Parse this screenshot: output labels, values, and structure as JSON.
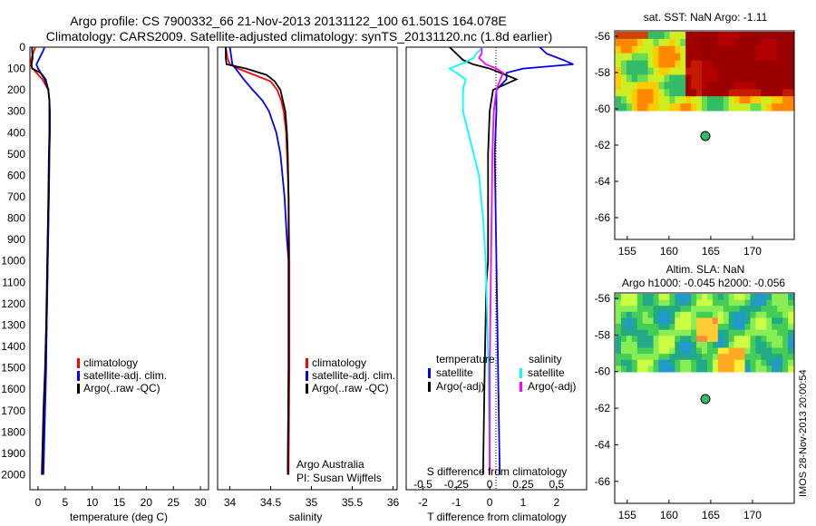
{
  "header": {
    "line1": "Argo profile: CS 7900332_66 21-Nov-2013 20131122_100 61.501S 164.078E",
    "line2": "Climatology: CARS2009. Satellite-adjusted climatology: synTS_20131120.nc (1.8d earlier)"
  },
  "side_label": "IMOS 28-Nov-2013 20:00:54",
  "colors": {
    "climatology": "#ff0000",
    "satellite": "#0000ff",
    "argo": "#000000",
    "salinity_satellite": "#00ffff",
    "salinity_argo": "#ff00ff"
  },
  "depth_axis": {
    "ticks": [
      "0",
      "100",
      "200",
      "300",
      "400",
      "500",
      "600",
      "700",
      "800",
      "900",
      "1000",
      "1100",
      "1200",
      "1300",
      "1400",
      "1500",
      "1600",
      "1700",
      "1800",
      "1900",
      "2000"
    ]
  },
  "panels": {
    "temperature": {
      "xlabel": "temperature (deg C)",
      "xticks": [
        "0",
        "5",
        "10",
        "15",
        "20",
        "25",
        "30"
      ],
      "legend": [
        "climatology",
        "satellite-adj. clim.",
        "Argo(..raw -QC)"
      ]
    },
    "salinity": {
      "xlabel": "salinity",
      "xticks": [
        "34",
        "34.5",
        "35",
        "35.5",
        "36"
      ],
      "legend": [
        "climatology",
        "satellite-adj. clim.",
        "Argo(..raw -QC)"
      ],
      "note1": "Argo Australia",
      "note2": "PI: Susan Wijffels"
    },
    "difference": {
      "xlabel": "T difference from climatology",
      "xticks": [
        "-2",
        "-1",
        "0",
        "1",
        "2"
      ],
      "top_label": "S difference from climatology",
      "top_ticks": [
        "-0.5",
        "-0.25",
        "0",
        "0.25",
        "0.5"
      ],
      "legend_t_title": "temperature",
      "legend_s_title": "salinity",
      "legend_t": [
        "satellite",
        "Argo(-adj)"
      ],
      "legend_s": [
        "satellite",
        "Argo(-adj)"
      ]
    }
  },
  "maps": {
    "sst": {
      "title": "sat. SST: NaN Argo: -1.11",
      "yticks": [
        "-56",
        "-58",
        "-60",
        "-62",
        "-64",
        "-66"
      ],
      "xticks": [
        "155",
        "160",
        "165",
        "170"
      ]
    },
    "sla": {
      "title1": "Altim. SLA: NaN",
      "title2": "Argo h1000: -0.045 h2000: -0.056",
      "yticks": [
        "-56",
        "-58",
        "-60",
        "-62",
        "-64",
        "-66"
      ],
      "xticks": [
        "155",
        "160",
        "165",
        "170"
      ]
    }
  },
  "chart_data": [
    {
      "type": "line",
      "title": "",
      "xlabel": "temperature (deg C)",
      "ylabel": "",
      "xlim": [
        -1.5,
        31.5
      ],
      "ylim": [
        2070,
        0
      ],
      "series": [
        {
          "name": "climatology",
          "depth": [
            0,
            20,
            50,
            80,
            100,
            150,
            200,
            250,
            300,
            400,
            500,
            700,
            1000,
            1300,
            1500,
            1700,
            2000
          ],
          "values": [
            -0.5,
            -0.8,
            -1.2,
            -1.4,
            -1.0,
            0.8,
            1.9,
            2.1,
            2.1,
            2.1,
            2.1,
            2.0,
            1.8,
            1.6,
            1.4,
            1.2,
            0.9
          ]
        },
        {
          "name": "satellite-adj. clim.",
          "depth": [
            0,
            20,
            50,
            80,
            100,
            150,
            200,
            250,
            300,
            400,
            500,
            700,
            1000,
            1300,
            1500,
            1700,
            2000
          ],
          "values": [
            1.2,
            0.9,
            0.3,
            -0.3,
            0.0,
            1.2,
            1.9,
            2.1,
            2.2,
            2.2,
            2.1,
            2.0,
            1.8,
            1.6,
            1.5,
            1.3,
            1.0
          ]
        },
        {
          "name": "Argo(..raw -QC)",
          "depth": [
            0,
            20,
            50,
            80,
            100,
            120,
            150,
            200,
            250,
            300,
            400,
            500,
            700,
            1000,
            1300,
            1500,
            1700,
            2000
          ],
          "values": [
            -1.1,
            -1.1,
            -1.0,
            -1.2,
            -1.1,
            0.5,
            1.4,
            1.9,
            2.1,
            2.1,
            2.1,
            2.0,
            1.9,
            1.7,
            1.5,
            1.3,
            1.0,
            0.7
          ]
        }
      ]
    },
    {
      "type": "line",
      "title": "",
      "xlabel": "salinity",
      "ylabel": "",
      "xlim": [
        33.85,
        36.05
      ],
      "ylim": [
        2070,
        0
      ],
      "series": [
        {
          "name": "climatology",
          "depth": [
            0,
            50,
            80,
            100,
            130,
            160,
            200,
            250,
            300,
            400,
            500,
            700,
            1000,
            1500,
            2000
          ],
          "values": [
            33.95,
            33.97,
            34.0,
            34.1,
            34.3,
            34.5,
            34.58,
            34.63,
            34.66,
            34.69,
            34.7,
            34.72,
            34.73,
            34.73,
            34.72
          ]
        },
        {
          "name": "satellite-adj. clim.",
          "depth": [
            0,
            50,
            80,
            100,
            150,
            200,
            250,
            300,
            400,
            500,
            700,
            900,
            1000,
            1500,
            2000
          ],
          "values": [
            34.0,
            34.02,
            34.03,
            34.07,
            34.17,
            34.28,
            34.4,
            34.48,
            34.57,
            34.62,
            34.67,
            34.7,
            34.72,
            34.72,
            34.71
          ]
        },
        {
          "name": "Argo(..raw -QC)",
          "depth": [
            0,
            50,
            80,
            100,
            130,
            160,
            200,
            250,
            300,
            400,
            500,
            700,
            1000,
            1500,
            2000
          ],
          "values": [
            33.95,
            33.95,
            33.96,
            34.2,
            34.45,
            34.55,
            34.62,
            34.65,
            34.68,
            34.7,
            34.71,
            34.72,
            34.72,
            34.72,
            34.71
          ]
        }
      ]
    },
    {
      "type": "line",
      "title": "",
      "xlabel": "T difference from climatology",
      "ylabel": "",
      "xlim": [
        -2.5,
        2.9
      ],
      "ylim": [
        2070,
        0
      ],
      "series": [
        {
          "name": "temperature satellite",
          "depth": [
            0,
            30,
            60,
            80,
            100,
            120,
            150,
            200,
            300,
            500,
            1000,
            1500,
            2000
          ],
          "values": [
            1.5,
            1.7,
            2.2,
            2.5,
            1.0,
            0.5,
            0.5,
            0.2,
            0.2,
            0.15,
            0.2,
            0.25,
            0.3
          ]
        },
        {
          "name": "temperature Argo(-adj)",
          "depth": [
            0,
            30,
            60,
            80,
            100,
            150,
            200,
            300,
            500,
            1000,
            1100,
            1500,
            2000
          ],
          "values": [
            -1.2,
            -1.0,
            -0.8,
            -0.5,
            0.0,
            0.8,
            0.1,
            0.0,
            -0.05,
            -0.05,
            -0.1,
            -0.15,
            -0.2
          ]
        },
        {
          "name": "salinity satellite",
          "depth": [
            0,
            30,
            50,
            70,
            100,
            120,
            150,
            200,
            300,
            400,
            500,
            600,
            800,
            1000,
            1500,
            2000
          ],
          "values": [
            -0.05,
            -0.1,
            -0.12,
            -0.18,
            -0.3,
            -0.25,
            -0.18,
            -0.2,
            -0.2,
            -0.16,
            -0.12,
            -0.08,
            -0.05,
            -0.03,
            -0.01,
            0.0
          ]
        },
        {
          "name": "salinity Argo(-adj)",
          "depth": [
            0,
            30,
            50,
            80,
            100,
            120,
            150,
            200,
            300,
            500,
            1000,
            1500,
            2000
          ],
          "values": [
            -0.06,
            -0.06,
            -0.08,
            -0.03,
            0.05,
            0.1,
            0.08,
            0.05,
            0.03,
            0.02,
            0.01,
            0.0,
            0.0
          ]
        }
      ]
    }
  ]
}
